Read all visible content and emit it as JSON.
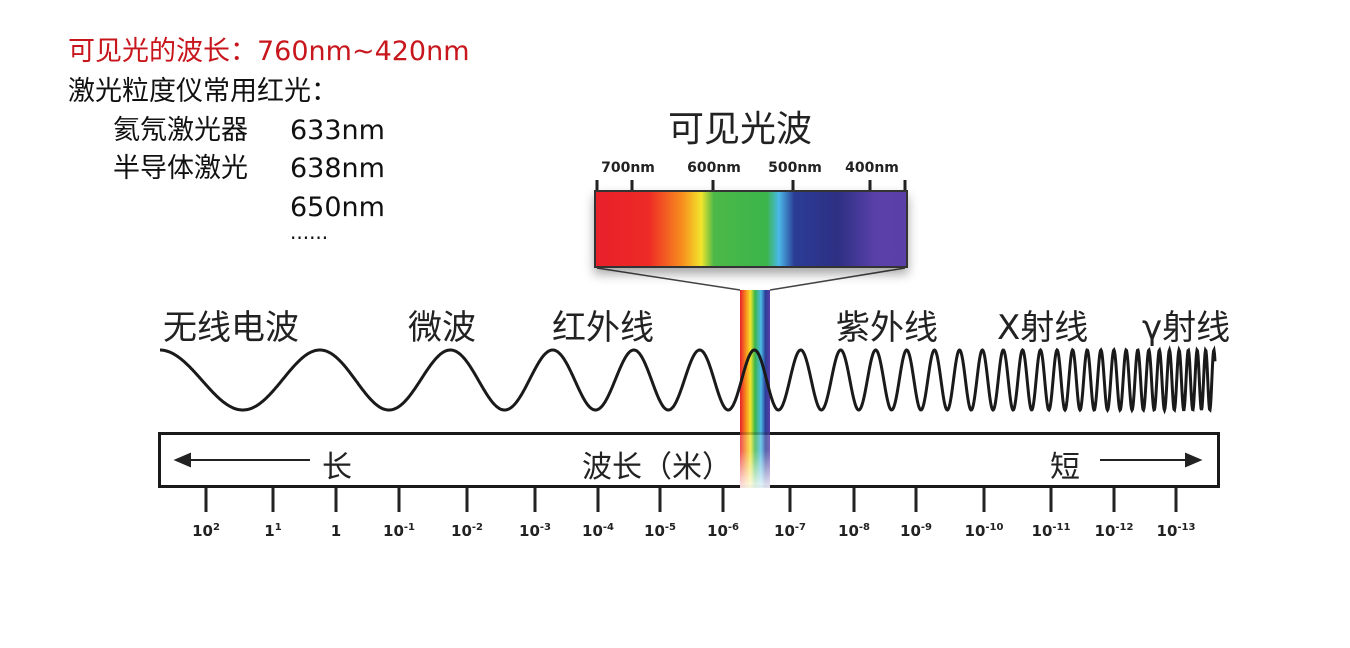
{
  "notes": {
    "visible_range": "可见光的波长：760nm~420nm",
    "intro": "激光粒度仪常用红光：",
    "rows": [
      {
        "label": "氦氖激光器",
        "value": "633nm"
      },
      {
        "label": "半导体激光",
        "value": "638nm"
      },
      {
        "label": "",
        "value": "650nm"
      },
      {
        "label": "",
        "value": "......"
      }
    ],
    "highlight_color": "#c8161d"
  },
  "diagram": {
    "visible_title": "可见光波",
    "nm_ticks": [
      "700nm",
      "600nm",
      "500nm",
      "400nm"
    ],
    "bands": [
      "无线电波",
      "微波",
      "红外线",
      "紫外线",
      "X射线",
      "γ射线"
    ],
    "scale": {
      "long": "长",
      "label": "波长（米）",
      "short": "短",
      "ticks": [
        {
          "base": "10",
          "exp": "2"
        },
        {
          "base": "1",
          "exp": "1"
        },
        {
          "base": "1",
          "exp": ""
        },
        {
          "base": "10",
          "exp": "-1"
        },
        {
          "base": "10",
          "exp": "-2"
        },
        {
          "base": "10",
          "exp": "-3"
        },
        {
          "base": "10",
          "exp": "-4"
        },
        {
          "base": "10",
          "exp": "-5"
        },
        {
          "base": "10",
          "exp": "-6"
        },
        {
          "base": "10",
          "exp": "-7"
        },
        {
          "base": "10",
          "exp": "-8"
        },
        {
          "base": "10",
          "exp": "-9"
        },
        {
          "base": "10",
          "exp": "-10"
        },
        {
          "base": "10",
          "exp": "-11"
        },
        {
          "base": "10",
          "exp": "-12"
        },
        {
          "base": "10",
          "exp": "-13"
        }
      ]
    }
  }
}
